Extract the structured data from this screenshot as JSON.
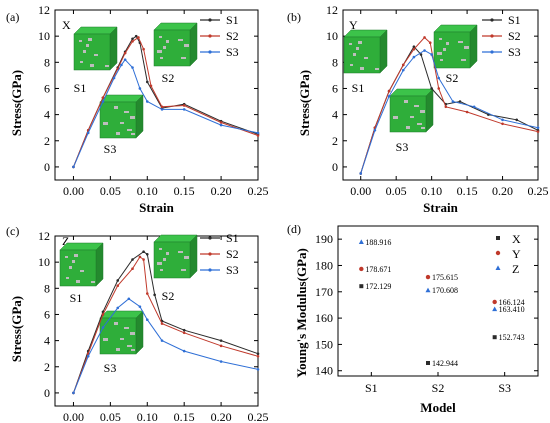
{
  "colors": {
    "S1": "#2b2b2b",
    "S2": "#c0392b",
    "S3": "#2f6fd6",
    "cube_green": "#2fae3a",
    "cube_grey": "#bdbdbd"
  },
  "stress_strain_panels": [
    {
      "panel_label": "(a)",
      "direction": "X",
      "xlabel": "Strain",
      "ylabel": "Stress(GPa)",
      "xlim": [
        -0.025,
        0.25
      ],
      "ylim": [
        -1,
        12
      ],
      "xticks": [
        "0.00",
        "0.05",
        "0.10",
        "0.15",
        "0.20",
        "0.25"
      ],
      "xtick_values": [
        0,
        0.05,
        0.1,
        0.15,
        0.2,
        0.25
      ],
      "yticks": [
        "0",
        "2",
        "4",
        "6",
        "8",
        "10",
        "12"
      ],
      "ytick_values": [
        0,
        2,
        4,
        6,
        8,
        10,
        12
      ],
      "legend": [
        "S1",
        "S2",
        "S3"
      ],
      "series": [
        {
          "name": "S1",
          "x": [
            0,
            0.02,
            0.04,
            0.06,
            0.07,
            0.08,
            0.085,
            0.09,
            0.1,
            0.12,
            0.15,
            0.2,
            0.25
          ],
          "y": [
            0,
            2.8,
            5.3,
            7.6,
            8.8,
            9.8,
            10,
            9.5,
            6.5,
            4.5,
            4.8,
            3.5,
            2.5
          ]
        },
        {
          "name": "S2",
          "x": [
            0,
            0.02,
            0.04,
            0.06,
            0.07,
            0.08,
            0.088,
            0.095,
            0.105,
            0.12,
            0.15,
            0.2,
            0.25
          ],
          "y": [
            0,
            2.8,
            5.3,
            7.5,
            8.7,
            9.6,
            9.9,
            9,
            6.2,
            4.6,
            4.7,
            3.4,
            2.4
          ]
        },
        {
          "name": "S3",
          "x": [
            0,
            0.02,
            0.04,
            0.055,
            0.065,
            0.07,
            0.08,
            0.09,
            0.1,
            0.12,
            0.15,
            0.2,
            0.25
          ],
          "y": [
            0,
            2.6,
            5,
            6.8,
            7.8,
            8.2,
            7.6,
            6,
            5,
            4.4,
            4.4,
            3.2,
            2.6
          ]
        }
      ],
      "samples": [
        {
          "label": "S1"
        },
        {
          "label": "S2"
        },
        {
          "label": "S3"
        }
      ]
    },
    {
      "panel_label": "(b)",
      "direction": "Y",
      "xlabel": "Strain",
      "ylabel": "Stress(GPa)",
      "xlim": [
        -0.025,
        0.25
      ],
      "ylim": [
        -1,
        12
      ],
      "xticks": [
        "0.00",
        "0.05",
        "0.10",
        "0.15",
        "0.20",
        "0.25"
      ],
      "xtick_values": [
        0,
        0.05,
        0.1,
        0.15,
        0.2,
        0.25
      ],
      "yticks": [
        "0",
        "2",
        "4",
        "6",
        "8",
        "10",
        "12"
      ],
      "ytick_values": [
        0,
        2,
        4,
        6,
        8,
        10,
        12
      ],
      "legend": [
        "S1",
        "S2",
        "S3"
      ],
      "series": [
        {
          "name": "S1",
          "x": [
            0,
            0.02,
            0.04,
            0.06,
            0.075,
            0.085,
            0.1,
            0.12,
            0.14,
            0.18,
            0.22,
            0.25
          ],
          "y": [
            -0.5,
            3,
            5.8,
            7.8,
            9.2,
            8.6,
            6,
            4.8,
            5,
            4,
            3.6,
            2.8
          ]
        },
        {
          "name": "S2",
          "x": [
            0,
            0.02,
            0.04,
            0.06,
            0.075,
            0.09,
            0.098,
            0.11,
            0.12,
            0.15,
            0.2,
            0.25
          ],
          "y": [
            -0.5,
            3,
            5.8,
            7.8,
            9,
            9.9,
            9.5,
            6,
            4.6,
            4.2,
            3.3,
            2.7
          ]
        },
        {
          "name": "S3",
          "x": [
            0,
            0.02,
            0.04,
            0.06,
            0.075,
            0.09,
            0.1,
            0.11,
            0.13,
            0.16,
            0.2,
            0.25
          ],
          "y": [
            -0.5,
            2.8,
            5.4,
            7.4,
            8.4,
            8.9,
            8.6,
            6.8,
            5,
            4.6,
            3.6,
            3
          ]
        }
      ],
      "samples": [
        {
          "label": "S1"
        },
        {
          "label": "S2"
        },
        {
          "label": "S3"
        }
      ]
    },
    {
      "panel_label": "(c)",
      "direction": "Z",
      "xlabel": "Strain",
      "ylabel": "Stress(GPa)",
      "xlim": [
        -0.025,
        0.25
      ],
      "ylim": [
        -1,
        12
      ],
      "xticks": [
        "0.00",
        "0.05",
        "0.10",
        "0.15",
        "0.20",
        "0.25"
      ],
      "xtick_values": [
        0,
        0.05,
        0.1,
        0.15,
        0.2,
        0.25
      ],
      "yticks": [
        "0",
        "2",
        "4",
        "6",
        "8",
        "10",
        "12"
      ],
      "ytick_values": [
        0,
        2,
        4,
        6,
        8,
        10,
        12
      ],
      "legend": [
        "S1",
        "S2",
        "S3"
      ],
      "series": [
        {
          "name": "S1",
          "x": [
            0,
            0.02,
            0.04,
            0.06,
            0.08,
            0.095,
            0.1,
            0.11,
            0.12,
            0.15,
            0.2,
            0.25
          ],
          "y": [
            0,
            3.2,
            6.2,
            8.6,
            10.2,
            10.8,
            10.6,
            7.5,
            5.5,
            4.8,
            4,
            3
          ]
        },
        {
          "name": "S2",
          "x": [
            0,
            0.02,
            0.04,
            0.06,
            0.08,
            0.09,
            0.095,
            0.1,
            0.12,
            0.15,
            0.2,
            0.25
          ],
          "y": [
            0,
            3,
            6,
            8.2,
            9.5,
            10.4,
            10.2,
            7.6,
            5.3,
            4.6,
            3.6,
            2.8
          ]
        },
        {
          "name": "S3",
          "x": [
            0,
            0.02,
            0.04,
            0.06,
            0.075,
            0.09,
            0.1,
            0.12,
            0.15,
            0.2,
            0.25
          ],
          "y": [
            0,
            2.8,
            5,
            6.5,
            7.2,
            6.6,
            5.6,
            4,
            3.2,
            2.4,
            1.8
          ]
        }
      ],
      "samples": [
        {
          "label": "S1"
        },
        {
          "label": "S2"
        },
        {
          "label": "S3"
        }
      ]
    }
  ],
  "chart_data": [
    {
      "type": "line",
      "panel": "(a)",
      "title": "X",
      "xlabel": "Strain",
      "ylabel": "Stress(GPa)",
      "xlim": [
        -0.025,
        0.25
      ],
      "ylim": [
        -1,
        12
      ],
      "legend": [
        "S1",
        "S2",
        "S3"
      ]
    },
    {
      "type": "line",
      "panel": "(b)",
      "title": "Y",
      "xlabel": "Strain",
      "ylabel": "Stress(GPa)",
      "xlim": [
        -0.025,
        0.25
      ],
      "ylim": [
        -1,
        12
      ],
      "legend": [
        "S1",
        "S2",
        "S3"
      ]
    },
    {
      "type": "line",
      "panel": "(c)",
      "title": "Z",
      "xlabel": "Strain",
      "ylabel": "Stress(GPa)",
      "xlim": [
        -0.025,
        0.25
      ],
      "ylim": [
        -1,
        12
      ],
      "legend": [
        "S1",
        "S2",
        "S3"
      ]
    },
    {
      "type": "scatter",
      "panel": "(d)",
      "xlabel": "Model",
      "ylabel": "Young's Modulus(GPa)",
      "categories": [
        "S1",
        "S2",
        "S3"
      ],
      "ylim": [
        138,
        195
      ],
      "yticks": [
        "140",
        "150",
        "160",
        "170",
        "180",
        "190"
      ],
      "ytick_values": [
        140,
        150,
        160,
        170,
        180,
        190
      ],
      "series": [
        {
          "name": "X",
          "color": "#2b2b2b",
          "marker": "square",
          "values": [
            172.129,
            142.944,
            152.743
          ],
          "labels": [
            "172.129",
            "142.944",
            "152.743"
          ]
        },
        {
          "name": "Y",
          "color": "#c0392b",
          "marker": "circle",
          "values": [
            178.671,
            175.615,
            166.124
          ],
          "labels": [
            "178.671",
            "175.615",
            "166.124"
          ]
        },
        {
          "name": "Z",
          "color": "#2f6fd6",
          "marker": "triangle",
          "values": [
            188.916,
            170.608,
            163.41
          ],
          "labels": [
            "188.916",
            "170.608",
            "163.410"
          ]
        }
      ]
    }
  ],
  "panel_d_label": "(d)"
}
